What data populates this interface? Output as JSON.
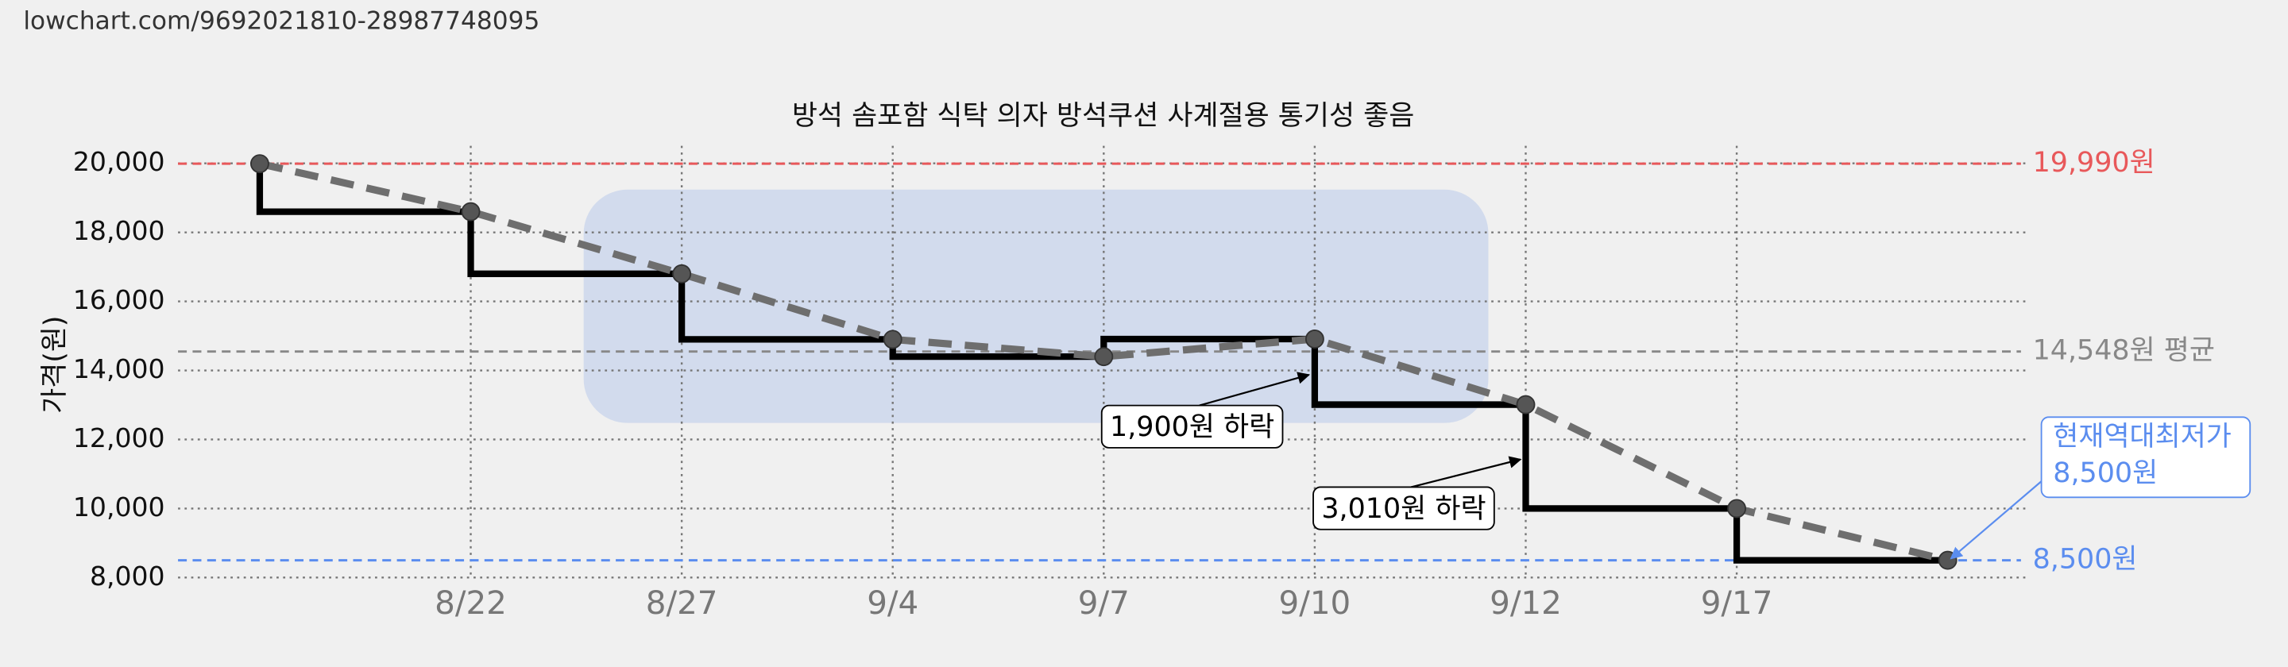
{
  "url": "lowchart.com/9692021810-28987748095",
  "chart_data": {
    "type": "line",
    "title": "방석 솜포함 식탁 의자 방석쿠션 사계절용 통기성 좋음",
    "y_label": "가격(원)",
    "categories": [
      null,
      "8/22",
      "8/27",
      "9/4",
      "9/7",
      "9/10",
      "9/12",
      "9/17",
      null
    ],
    "series": [
      {
        "color": "#000000",
        "values": [
          19990,
          18600,
          16800,
          14900,
          14400,
          14910,
          13010,
          10000,
          8500
        ]
      }
    ],
    "ylim": [
      8000,
      20000
    ],
    "yticks": [
      {
        "value": 8000,
        "label": "8,000"
      },
      {
        "value": 10000,
        "label": "10,000"
      },
      {
        "value": 12000,
        "label": "12,000"
      },
      {
        "value": 14000,
        "label": "14,000"
      },
      {
        "value": 16000,
        "label": "16,000"
      },
      {
        "value": 18000,
        "label": "18,000"
      },
      {
        "value": 20000,
        "label": "20,000"
      }
    ],
    "grid": true,
    "reference_lines": [
      {
        "value": 19990,
        "label": "19,990원",
        "color": "#e8585a"
      },
      {
        "value": 14548,
        "label": "14,548원 평균",
        "color": "#888888"
      },
      {
        "value": 8500,
        "label": "8,500원",
        "color": "#5b8def"
      }
    ],
    "annotations": [
      {
        "text": "1,900원 하락"
      },
      {
        "text": "3,010원 하락"
      },
      {
        "lines": [
          "현재역대최저가",
          "8,500원"
        ],
        "color": "#5b8def"
      }
    ]
  }
}
